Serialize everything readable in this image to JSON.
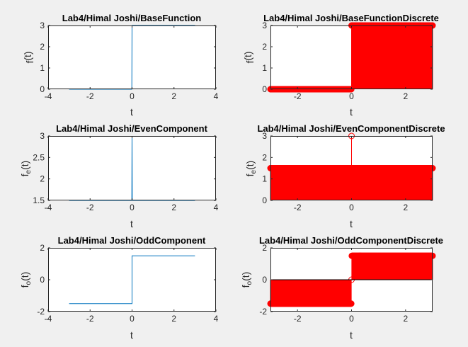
{
  "colors": {
    "figure_bg": "#f0f0f0",
    "axes_bg": "#ffffff",
    "axis": "#262626",
    "continuous_line": "#0072bd",
    "discrete_stem": "#ff0000"
  },
  "chart_data": [
    {
      "type": "line",
      "title": "Lab4/Himal Joshi/BaseFunction",
      "xlabel": "t",
      "ylabel": {
        "main": "f",
        "sub": "",
        "suffix": "(t)"
      },
      "xlim": [
        -4,
        4
      ],
      "ylim": [
        0,
        3
      ],
      "xticks": [
        -4,
        -2,
        0,
        2,
        4
      ],
      "yticks": [
        0,
        1,
        2,
        3
      ],
      "series": [
        {
          "x": [
            -3,
            -0.01,
            0,
            3
          ],
          "y": [
            0,
            0,
            3,
            3
          ]
        }
      ]
    },
    {
      "type": "stem",
      "title": "Lab4/Himal Joshi/BaseFunctionDiscrete",
      "xlabel": "t",
      "ylabel": {
        "main": "f",
        "sub": "",
        "suffix": "(t)"
      },
      "xlim": [
        -3,
        3
      ],
      "ylim": [
        0,
        3
      ],
      "xticks": [
        -2,
        0,
        2
      ],
      "yticks": [
        0,
        1,
        2,
        3
      ],
      "sampling": {
        "start": -3,
        "end": 3,
        "step": 0.01
      },
      "segments": [
        {
          "from": -3,
          "to": -0.01,
          "value": 0
        },
        {
          "at": 0,
          "value": 3
        },
        {
          "from": 0.01,
          "to": 3,
          "value": 3
        }
      ]
    },
    {
      "type": "line",
      "title": "Lab4/Himal Joshi/EvenComponent",
      "xlabel": "t",
      "ylabel": {
        "main": "f",
        "sub": "e",
        "suffix": "(t)"
      },
      "xlim": [
        -4,
        4
      ],
      "ylim": [
        1.5,
        3
      ],
      "xticks": [
        -4,
        -2,
        0,
        2,
        4
      ],
      "yticks": [
        1.5,
        2,
        2.5,
        3
      ],
      "series": [
        {
          "x": [
            -3,
            -0.01,
            0,
            0.01,
            3
          ],
          "y": [
            1.5,
            1.5,
            3,
            1.5,
            1.5
          ]
        }
      ]
    },
    {
      "type": "stem",
      "title": "Lab4/Himal Joshi/EvenComponentDiscrete",
      "xlabel": "t",
      "ylabel": {
        "main": "f",
        "sub": "e",
        "suffix": "(t)"
      },
      "xlim": [
        -3,
        3
      ],
      "ylim": [
        0,
        3
      ],
      "xticks": [
        -2,
        0,
        2
      ],
      "yticks": [
        0,
        1,
        2,
        3
      ],
      "sampling": {
        "start": -3,
        "end": 3,
        "step": 0.01
      },
      "segments": [
        {
          "from": -3,
          "to": -0.01,
          "value": 1.5
        },
        {
          "at": 0,
          "value": 3
        },
        {
          "from": 0.01,
          "to": 3,
          "value": 1.5
        }
      ]
    },
    {
      "type": "line",
      "title": "Lab4/Himal Joshi/OddComponent",
      "xlabel": "t",
      "ylabel": {
        "main": "f",
        "sub": "o",
        "suffix": "(t)"
      },
      "xlim": [
        -4,
        4
      ],
      "ylim": [
        -2,
        2
      ],
      "xticks": [
        -4,
        -2,
        0,
        2,
        4
      ],
      "yticks": [
        -2,
        0,
        2
      ],
      "series": [
        {
          "x": [
            -3,
            0,
            0,
            3
          ],
          "y": [
            -1.5,
            -1.5,
            1.5,
            1.5
          ]
        }
      ]
    },
    {
      "type": "stem",
      "title": "Lab4/Himal Joshi/OddComponentDiscrete",
      "xlabel": "t",
      "ylabel": {
        "main": "f",
        "sub": "o",
        "suffix": "(t)"
      },
      "xlim": [
        -3,
        3
      ],
      "ylim": [
        -2,
        2
      ],
      "xticks": [
        -2,
        0,
        2
      ],
      "yticks": [
        -2,
        0,
        2
      ],
      "sampling": {
        "start": -3,
        "end": 3,
        "step": 0.01
      },
      "segments": [
        {
          "from": -3,
          "to": -0.01,
          "value": -1.5
        },
        {
          "at": 0,
          "value": 0
        },
        {
          "from": 0.01,
          "to": 3,
          "value": 1.5
        }
      ]
    }
  ]
}
